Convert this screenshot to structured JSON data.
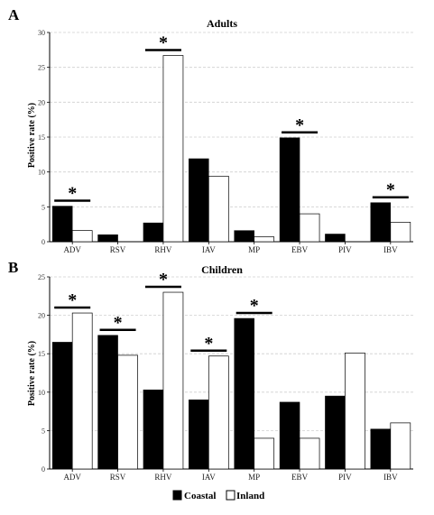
{
  "legend": {
    "series": [
      "Coastal",
      "Inland"
    ]
  },
  "colors": {
    "coastal": "#000000",
    "inland": "#ffffff",
    "grid": "#cfcfcf"
  },
  "significance_marker": "*",
  "chart_data": [
    {
      "panel": "A",
      "type": "bar",
      "title": "Adults",
      "xlabel": "",
      "ylabel": "Positive rate (%)",
      "ylim": [
        0,
        30
      ],
      "yticks": [
        0,
        5,
        10,
        15,
        20,
        25,
        30
      ],
      "grid": true,
      "categories": [
        "ADV",
        "RSV",
        "RHV",
        "IAV",
        "MP",
        "EBV",
        "PIV",
        "IBV"
      ],
      "series": [
        {
          "name": "Coastal",
          "values": [
            5.1,
            1.0,
            2.7,
            11.9,
            1.6,
            14.9,
            1.1,
            5.6
          ]
        },
        {
          "name": "Inland",
          "values": [
            1.6,
            0.0,
            26.7,
            9.4,
            0.7,
            4.0,
            0.0,
            2.8
          ]
        }
      ],
      "significant": [
        "ADV",
        "RHV",
        "EBV",
        "IBV"
      ]
    },
    {
      "panel": "B",
      "type": "bar",
      "title": "Children",
      "xlabel": "",
      "ylabel": "Positive rate (%)",
      "ylim": [
        0,
        25
      ],
      "yticks": [
        0,
        5,
        10,
        15,
        20,
        25
      ],
      "grid": true,
      "categories": [
        "ADV",
        "RSV",
        "RHV",
        "IAV",
        "MP",
        "EBV",
        "PIV",
        "IBV"
      ],
      "series": [
        {
          "name": "Coastal",
          "values": [
            16.5,
            17.4,
            10.3,
            9.0,
            19.6,
            8.7,
            9.5,
            5.2
          ]
        },
        {
          "name": "Inland",
          "values": [
            20.3,
            14.8,
            23.0,
            14.7,
            4.0,
            4.0,
            15.1,
            6.0
          ]
        }
      ],
      "significant": [
        "ADV",
        "RSV",
        "RHV",
        "IAV",
        "MP"
      ]
    }
  ]
}
